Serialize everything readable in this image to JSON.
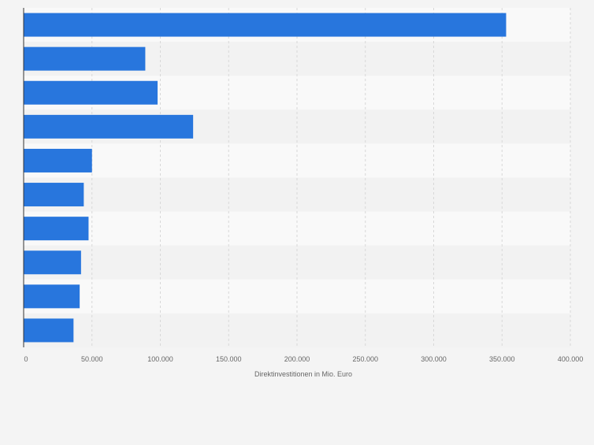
{
  "chart_data": {
    "type": "bar",
    "orientation": "horizontal",
    "categories": [
      "",
      "",
      "",
      "",
      "",
      "",
      "",
      "",
      "",
      ""
    ],
    "values": [
      353000,
      89000,
      98000,
      124000,
      50000,
      44000,
      47500,
      42000,
      41000,
      36500
    ],
    "xlabel": "Direktinvestitionen in Mio. Euro",
    "ylabel": "",
    "xlim": [
      0,
      400000
    ],
    "x_ticks": [
      0,
      50000,
      100000,
      150000,
      200000,
      250000,
      300000,
      350000,
      400000
    ],
    "x_tick_labels": [
      "0",
      "50.000",
      "100.000",
      "150.000",
      "200.000",
      "250.000",
      "300.000",
      "350.000",
      "400.000"
    ],
    "grid": "vertical dashed",
    "legend": "none",
    "colors": {
      "bar": "#2876dd",
      "band_light": "#f9f9f9",
      "band_dark": "#f2f2f2",
      "grid": "#d8d8d8",
      "axis": "#333333",
      "tick_text": "#666666"
    }
  }
}
